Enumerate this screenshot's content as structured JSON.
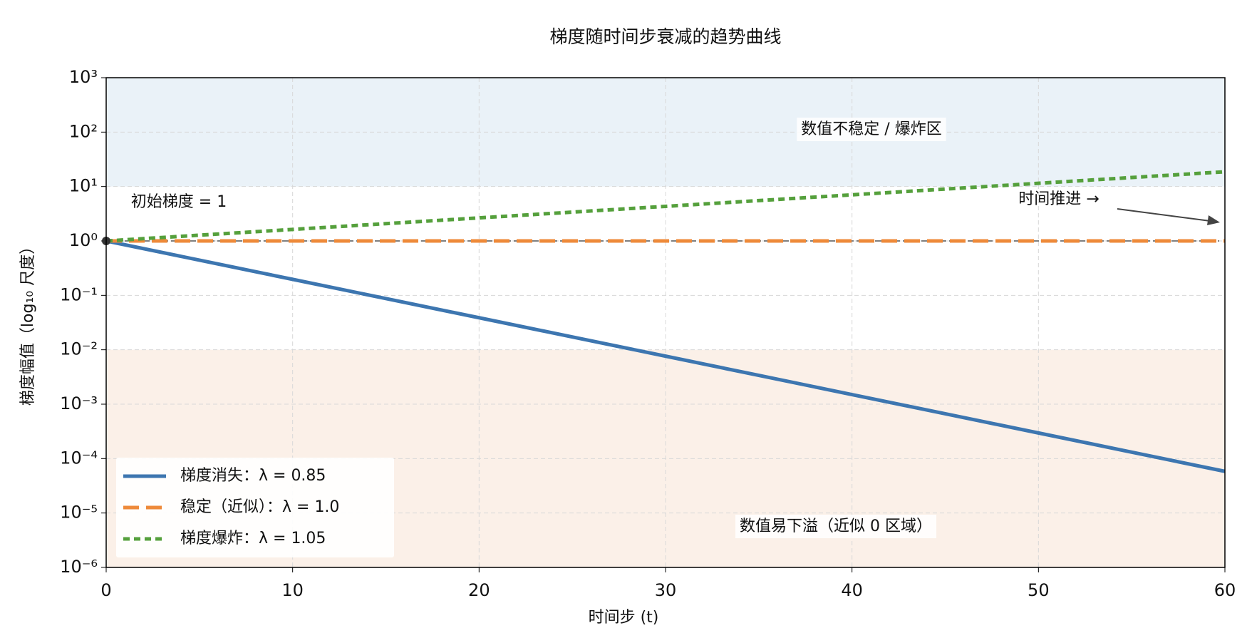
{
  "chart_data": {
    "type": "line",
    "title": "梯度随时间步衰减的趋势曲线",
    "xlabel": "时间步 (t)",
    "ylabel": "梯度幅值（log₁₀ 尺度）",
    "x": [
      0,
      5,
      10,
      15,
      20,
      25,
      30,
      35,
      40,
      45,
      50,
      55,
      60
    ],
    "series": [
      {
        "name": "梯度消失：λ = 0.85",
        "color": "#3d76b0",
        "style": "solid",
        "values": [
          1,
          0.4437,
          0.1969,
          0.08735,
          0.03876,
          0.0172,
          0.00763,
          0.003386,
          0.001502,
          0.0006666,
          0.0002958,
          0.0001312,
          5.823e-05
        ]
      },
      {
        "name": "稳定（近似）：λ = 1.0",
        "color": "#ee8a3a",
        "style": "dashed",
        "values": [
          1,
          1,
          1,
          1,
          1,
          1,
          1,
          1,
          1,
          1,
          1,
          1,
          1
        ]
      },
      {
        "name": "梯度爆炸：λ = 1.05",
        "color": "#55a03c",
        "style": "dotted",
        "values": [
          1,
          1.2763,
          1.6289,
          2.0789,
          2.6533,
          3.3864,
          4.3219,
          5.516,
          7.04,
          8.985,
          11.4674,
          14.6356,
          18.6792
        ]
      }
    ],
    "xlim": [
      0,
      60
    ],
    "xticks": [
      0,
      10,
      20,
      30,
      40,
      50,
      60
    ],
    "ylim": [
      1e-06,
      1000
    ],
    "yscale": "log",
    "yticks": [
      {
        "value": 1e-06,
        "label": "10⁻⁶"
      },
      {
        "value": 1e-05,
        "label": "10⁻⁵"
      },
      {
        "value": 0.0001,
        "label": "10⁻⁴"
      },
      {
        "value": 0.001,
        "label": "10⁻³"
      },
      {
        "value": 0.01,
        "label": "10⁻²"
      },
      {
        "value": 0.1,
        "label": "10⁻¹"
      },
      {
        "value": 1,
        "label": "10⁰"
      },
      {
        "value": 10,
        "label": "10¹"
      },
      {
        "value": 100,
        "label": "10²"
      },
      {
        "value": 1000,
        "label": "10³"
      }
    ],
    "grid": true,
    "legend": "lower left",
    "reference_line": 1,
    "bands": [
      {
        "from": 10,
        "to": 1000,
        "color": "#eaf2f8"
      },
      {
        "from": 1e-06,
        "to": 0.01,
        "color": "#fbf0e8"
      }
    ],
    "annotations": {
      "explode": "数值不稳定 / 爆炸区",
      "underflow": "数值易下溢（近似 0 区域）",
      "initial": "初始梯度 = 1",
      "arrow": "时间推进 →"
    }
  }
}
